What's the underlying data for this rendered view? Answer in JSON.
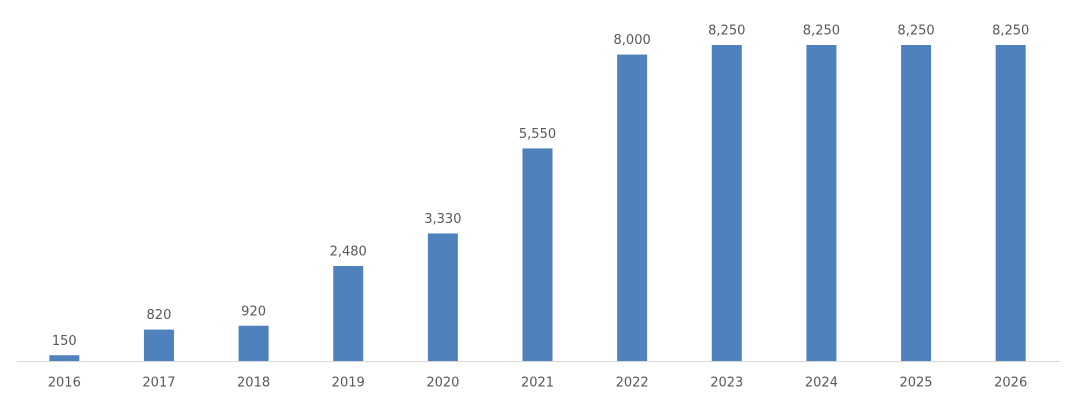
{
  "chart_data": {
    "type": "bar",
    "categories": [
      "2016",
      "2017",
      "2018",
      "2019",
      "2020",
      "2021",
      "2022",
      "2023",
      "2024",
      "2025",
      "2026"
    ],
    "values": [
      150,
      820,
      920,
      2480,
      3330,
      5550,
      8000,
      8250,
      8250,
      8250,
      8250
    ],
    "value_labels": [
      "150",
      "820",
      "920",
      "2,480",
      "3,330",
      "5,550",
      "8,000",
      "8,250",
      "8,250",
      "8,250",
      "8,250"
    ],
    "color": "#4f81bd"
  }
}
